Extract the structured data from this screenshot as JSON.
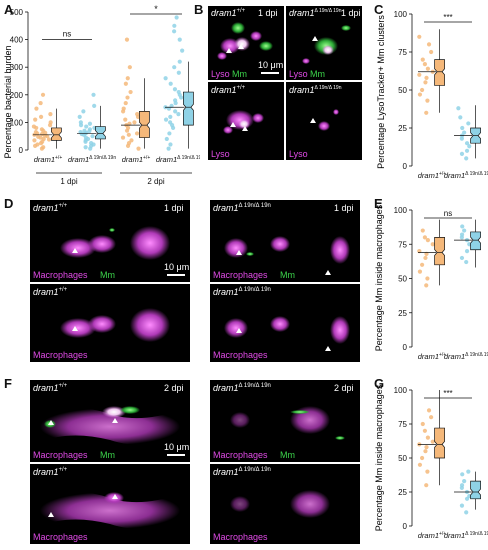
{
  "panels": {
    "A": {
      "label": "A",
      "ylabel": "Percentage bacterial burden",
      "yticks": [
        "0",
        "100",
        "200",
        "300",
        "400",
        "500"
      ],
      "xticks": [
        {
          "pre": "dram1",
          "sup": "+/+"
        },
        {
          "pre": "dram1",
          "sup": "Δ 19n/Δ 19n"
        },
        {
          "pre": "dram1",
          "sup": "+/+"
        },
        {
          "pre": "dram1",
          "sup": "Δ 19n/Δ 19n"
        }
      ],
      "group_labels": [
        "1 dpi",
        "2 dpi"
      ],
      "sig": [
        "ns",
        "*"
      ]
    },
    "B": {
      "label": "B",
      "tiles": [
        {
          "genotype": "dram1",
          "sup": "+/+",
          "time": "1 dpi",
          "c1": "Lyso",
          "c2": "Mm",
          "scale": "10 μm"
        },
        {
          "genotype": "dram1",
          "sup": "Δ 19n/Δ 19n",
          "time": "1 dpi",
          "c1": "Lyso",
          "c2": "Mm",
          "scale": ""
        },
        {
          "genotype": "dram1",
          "sup": "+/+",
          "time": "",
          "c1": "Lyso",
          "c2": "",
          "scale": ""
        },
        {
          "genotype": "dram1",
          "sup": "Δ 19n/Δ 19n",
          "time": "",
          "c1": "Lyso",
          "c2": "",
          "scale": ""
        }
      ]
    },
    "C": {
      "label": "C",
      "ylabel": "Percentage LysoTracker+ Mm clusters",
      "yticks": [
        "0",
        "25",
        "50",
        "75",
        "100"
      ],
      "xticks": [
        {
          "pre": "dram1",
          "sup": "+/+"
        },
        {
          "pre": "dram1",
          "sup": "Δ 19n/Δ 19n"
        }
      ],
      "sig": "***"
    },
    "D": {
      "label": "D",
      "tiles": [
        {
          "genotype": "dram1",
          "sup": "+/+",
          "time": "1 dpi",
          "c1": "Macrophages",
          "c2": "Mm",
          "scale": "10 μm"
        },
        {
          "genotype": "dram1",
          "sup": "Δ 19n/Δ 19n",
          "time": "1 dpi",
          "c1": "Macrophages",
          "c2": "Mm",
          "scale": ""
        },
        {
          "genotype": "dram1",
          "sup": "+/+",
          "time": "",
          "c1": "Macrophages",
          "c2": "",
          "scale": ""
        },
        {
          "genotype": "dram1",
          "sup": "Δ 19n/Δ 19n",
          "time": "",
          "c1": "Macrophages",
          "c2": "",
          "scale": ""
        }
      ]
    },
    "E": {
      "label": "E",
      "ylabel": "Percentage Mm inside macrophages",
      "yticks": [
        "0",
        "25",
        "50",
        "75",
        "100"
      ],
      "xticks": [
        {
          "pre": "dram1",
          "sup": "+/+"
        },
        {
          "pre": "dram1",
          "sup": "Δ 19n/Δ 19n"
        }
      ],
      "sig": "ns"
    },
    "F": {
      "label": "F",
      "tiles": [
        {
          "genotype": "dram1",
          "sup": "+/+",
          "time": "2 dpi",
          "c1": "Macrophages",
          "c2": "Mm",
          "scale": "10 μm"
        },
        {
          "genotype": "dram1",
          "sup": "Δ 19n/Δ 19n",
          "time": "2 dpi",
          "c1": "Macrophages",
          "c2": "Mm",
          "scale": ""
        },
        {
          "genotype": "dram1",
          "sup": "+/+",
          "time": "",
          "c1": "Macrophages",
          "c2": "",
          "scale": ""
        },
        {
          "genotype": "dram1",
          "sup": "Δ 19n/Δ 19n",
          "time": "",
          "c1": "Macrophages",
          "c2": "",
          "scale": ""
        }
      ]
    },
    "G": {
      "label": "G",
      "ylabel": "Percentage Mm inside macrophages",
      "yticks": [
        "0",
        "25",
        "50",
        "75",
        "100"
      ],
      "xticks": [
        {
          "pre": "dram1",
          "sup": "+/+"
        },
        {
          "pre": "dram1",
          "sup": "Δ 19n/Δ 19n"
        }
      ],
      "sig": "***"
    }
  },
  "colors": {
    "wt": "#f5b87a",
    "mut": "#8fd2e6",
    "magenta": "#e04be6",
    "green": "#3bd24a"
  },
  "chart_data": [
    {
      "id": "A",
      "type": "scatter",
      "ylim": [
        0,
        500
      ],
      "ylabel": "Percentage bacterial burden",
      "groups": [
        {
          "x": "dram1 +/+ 1 dpi",
          "median": 55,
          "q1": 35,
          "q3": 80,
          "min": 5,
          "max": 150,
          "values": [
            5,
            10,
            15,
            20,
            25,
            30,
            35,
            38,
            40,
            45,
            48,
            50,
            52,
            55,
            58,
            60,
            62,
            65,
            70,
            75,
            80,
            85,
            90,
            100,
            110,
            120,
            130,
            150,
            170,
            200
          ]
        },
        {
          "x": "dram1 Δ19n/Δ19n 1 dpi",
          "median": 60,
          "q1": 40,
          "q3": 85,
          "min": 5,
          "max": 160,
          "values": [
            5,
            10,
            15,
            20,
            25,
            30,
            35,
            40,
            45,
            50,
            55,
            58,
            60,
            62,
            65,
            68,
            70,
            75,
            80,
            85,
            90,
            95,
            100,
            120,
            140,
            160,
            200
          ]
        },
        {
          "x": "dram1 +/+ 2 dpi",
          "median": 90,
          "q1": 45,
          "q3": 140,
          "min": 5,
          "max": 260,
          "values": [
            5,
            15,
            25,
            35,
            45,
            55,
            60,
            70,
            80,
            90,
            95,
            100,
            110,
            120,
            130,
            140,
            150,
            170,
            190,
            210,
            240,
            260,
            300,
            400
          ]
        },
        {
          "x": "dram1 Δ19n/Δ19n 2 dpi",
          "median": 155,
          "q1": 90,
          "q3": 210,
          "min": 5,
          "max": 320,
          "values": [
            5,
            20,
            40,
            60,
            80,
            90,
            100,
            110,
            120,
            130,
            140,
            150,
            155,
            160,
            170,
            180,
            190,
            200,
            210,
            220,
            240,
            260,
            280,
            300,
            320,
            360,
            400,
            430,
            450,
            480
          ]
        }
      ],
      "significance": [
        {
          "pair": [
            "dram1 +/+ 1 dpi",
            "dram1 Δ19n/Δ19n 1 dpi"
          ],
          "label": "ns"
        },
        {
          "pair": [
            "dram1 +/+ 2 dpi",
            "dram1 Δ19n/Δ19n 2 dpi"
          ],
          "label": "*"
        }
      ]
    },
    {
      "id": "C",
      "type": "scatter",
      "ylim": [
        0,
        100
      ],
      "ylabel": "Percentage LysoTracker+ Mm clusters",
      "groups": [
        {
          "x": "dram1 +/+",
          "median": 62,
          "q1": 53,
          "q3": 70,
          "min": 35,
          "max": 90,
          "values": [
            35,
            43,
            47,
            50,
            55,
            58,
            60,
            62,
            64,
            67,
            70,
            75,
            80,
            85
          ]
        },
        {
          "x": "dram1 Δ19n/Δ19n",
          "median": 20,
          "q1": 15,
          "q3": 25,
          "min": 5,
          "max": 40,
          "values": [
            5,
            8,
            10,
            13,
            15,
            18,
            20,
            22,
            25,
            28,
            32,
            38
          ]
        }
      ],
      "significance": [
        {
          "pair": [
            "dram1 +/+",
            "dram1 Δ19n/Δ19n"
          ],
          "label": "***"
        }
      ]
    },
    {
      "id": "E",
      "type": "scatter",
      "ylim": [
        0,
        100
      ],
      "ylabel": "Percentage Mm inside macrophages",
      "groups": [
        {
          "x": "dram1 +/+",
          "median": 69,
          "q1": 60,
          "q3": 80,
          "min": 45,
          "max": 93,
          "values": [
            45,
            50,
            55,
            60,
            65,
            68,
            70,
            75,
            78,
            80,
            85
          ]
        },
        {
          "x": "dram1 Δ19n/Δ19n",
          "median": 78,
          "q1": 71,
          "q3": 84,
          "min": 58,
          "max": 93,
          "values": [
            62,
            65,
            70,
            75,
            78,
            80,
            82,
            85,
            88
          ]
        }
      ],
      "significance": [
        {
          "pair": [
            "dram1 +/+",
            "dram1 Δ19n/Δ19n"
          ],
          "label": "ns"
        }
      ]
    },
    {
      "id": "G",
      "type": "scatter",
      "ylim": [
        0,
        100
      ],
      "ylabel": "Percentage Mm inside macrophages",
      "groups": [
        {
          "x": "dram1 +/+",
          "median": 60,
          "q1": 50,
          "q3": 72,
          "min": 30,
          "max": 100,
          "values": [
            30,
            40,
            45,
            50,
            55,
            58,
            60,
            62,
            65,
            70,
            75,
            80,
            85
          ]
        },
        {
          "x": "dram1 Δ19n/Δ19n",
          "median": 25,
          "q1": 20,
          "q3": 33,
          "min": 12,
          "max": 40,
          "values": [
            10,
            15,
            20,
            22,
            25,
            28,
            30,
            33,
            38,
            40
          ]
        }
      ],
      "significance": [
        {
          "pair": [
            "dram1 +/+",
            "dram1 Δ19n/Δ19n"
          ],
          "label": "***"
        }
      ]
    }
  ]
}
